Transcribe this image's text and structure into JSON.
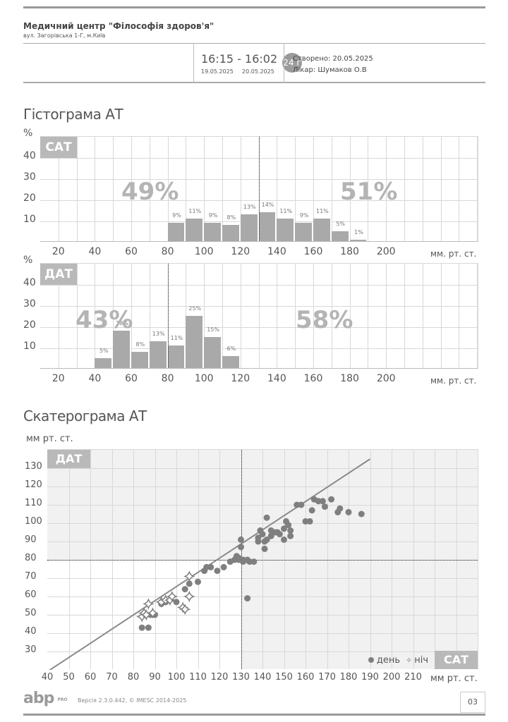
{
  "header": {
    "clinic_name": "Медичний центр \"Філософія здоров'я\"",
    "address": "вул. Загорівська 1-Г, м.Київ",
    "time_range": "16:15 - 16:02",
    "date_start": "19.05.2025",
    "date_end": "20.05.2025",
    "duration_badge": "24 г",
    "created": "Створено: 20.05.2025",
    "doctor": "Лікар: Шумаков О.В"
  },
  "sections": {
    "histogram_title": "Гістограма АТ",
    "scatter_title": "Скатерограма АТ"
  },
  "footer": {
    "logo_text": "abp",
    "logo_sub": "PRO",
    "version": "Версія 2.3.0.442, © IMESC 2014-2025",
    "page_number": "03"
  },
  "colors": {
    "bar": "#a9a9a9",
    "tag": "#b9b9b9",
    "big_percent": "#b4b4b4",
    "point": "#7f7f7f",
    "shade": "#f1f1f1",
    "grid": "#d8d8d8"
  },
  "chart_data": [
    {
      "type": "bar",
      "title": "САТ",
      "ylabel": "%",
      "xlabel": "мм. рт. ст.",
      "ylim": [
        0,
        50
      ],
      "yticks": [
        10,
        20,
        30,
        40
      ],
      "xticks": [
        20,
        40,
        60,
        80,
        100,
        120,
        140,
        160,
        180,
        200
      ],
      "bins": [
        [
          80,
          90
        ],
        [
          90,
          100
        ],
        [
          100,
          110
        ],
        [
          110,
          120
        ],
        [
          120,
          130
        ],
        [
          130,
          140
        ],
        [
          140,
          150
        ],
        [
          150,
          160
        ],
        [
          160,
          170
        ],
        [
          170,
          180
        ],
        [
          180,
          190
        ]
      ],
      "values": [
        9,
        11,
        9,
        8,
        13,
        14,
        11,
        9,
        11,
        5,
        1
      ],
      "labels": [
        "9%",
        "11%",
        "9%",
        "8%",
        "13%",
        "14%",
        "11%",
        "9%",
        "11%",
        "5%",
        "1%"
      ],
      "threshold": 130,
      "below_threshold_pct": "49%",
      "above_threshold_pct": "51%",
      "unit": "мм. рт. ст.",
      "grid": true
    },
    {
      "type": "bar",
      "title": "ДАТ",
      "ylabel": "%",
      "xlabel": "мм. рт. ст.",
      "ylim": [
        0,
        50
      ],
      "yticks": [
        10,
        20,
        30,
        40
      ],
      "xticks": [
        20,
        40,
        60,
        80,
        100,
        120,
        140,
        160,
        180,
        200
      ],
      "bins": [
        [
          40,
          50
        ],
        [
          50,
          60
        ],
        [
          60,
          70
        ],
        [
          70,
          80
        ],
        [
          80,
          90
        ],
        [
          90,
          100
        ],
        [
          100,
          110
        ],
        [
          110,
          120
        ]
      ],
      "values": [
        5,
        18,
        8,
        13,
        11,
        25,
        15,
        6
      ],
      "labels": [
        "5%",
        "18%",
        "8%",
        "13%",
        "11%",
        "25%",
        "15%",
        "6%"
      ],
      "threshold": 80,
      "below_threshold_pct": "43%",
      "above_threshold_pct": "58%",
      "unit": "мм. рт. ст.",
      "grid": true
    },
    {
      "type": "scatter",
      "title": "Скатерограма АТ",
      "xlabel": "мм рт. ст.",
      "ylabel": "мм рт. ст.",
      "x_axis_tag": "САТ",
      "y_axis_tag": "ДАТ",
      "xlim": [
        40,
        220
      ],
      "ylim": [
        20,
        140
      ],
      "xticks": [
        40,
        50,
        60,
        70,
        80,
        90,
        100,
        110,
        120,
        130,
        140,
        150,
        160,
        170,
        180,
        190,
        200,
        210
      ],
      "yticks": [
        30,
        40,
        50,
        60,
        70,
        80,
        90,
        100,
        110,
        120,
        130
      ],
      "thresholds": {
        "x": 130,
        "y": 80
      },
      "legend": [
        {
          "label": "день",
          "marker": "circle"
        },
        {
          "label": "ніч",
          "marker": "star"
        }
      ],
      "trend_line": {
        "from": [
          40,
          19
        ],
        "to": [
          190,
          135
        ]
      },
      "series": [
        {
          "name": "день",
          "points": [
            [
              84,
              43
            ],
            [
              87,
              43
            ],
            [
              88,
              50
            ],
            [
              90,
              50
            ],
            [
              93,
              56
            ],
            [
              95,
              57
            ],
            [
              100,
              57
            ],
            [
              104,
              64
            ],
            [
              106,
              67
            ],
            [
              110,
              68
            ],
            [
              113,
              74
            ],
            [
              114,
              76
            ],
            [
              116,
              76
            ],
            [
              119,
              74
            ],
            [
              122,
              76
            ],
            [
              125,
              79
            ],
            [
              127,
              80
            ],
            [
              128,
              82
            ],
            [
              129,
              81
            ],
            [
              130,
              91
            ],
            [
              130,
              87
            ],
            [
              131,
              80
            ],
            [
              133,
              80
            ],
            [
              133,
              59
            ],
            [
              134,
              79
            ],
            [
              136,
              79
            ],
            [
              138,
              90
            ],
            [
              138,
              92
            ],
            [
              139,
              96
            ],
            [
              140,
              94
            ],
            [
              141,
              90
            ],
            [
              141,
              86
            ],
            [
              142,
              91
            ],
            [
              142,
              103
            ],
            [
              144,
              96
            ],
            [
              147,
              95
            ],
            [
              148,
              94
            ],
            [
              150,
              91
            ],
            [
              151,
              101
            ],
            [
              152,
              99
            ],
            [
              153,
              96
            ],
            [
              153,
              93
            ],
            [
              156,
              110
            ],
            [
              158,
              110
            ],
            [
              160,
              101
            ],
            [
              162,
              101
            ],
            [
              163,
              107
            ],
            [
              164,
              113
            ],
            [
              166,
              112
            ],
            [
              168,
              112
            ],
            [
              169,
              109
            ],
            [
              172,
              113
            ],
            [
              175,
              106
            ],
            [
              176,
              108
            ],
            [
              180,
              106
            ],
            [
              186,
              105
            ],
            [
              150,
              97
            ],
            [
              146,
              95
            ],
            [
              144,
              93
            ],
            [
              131,
              79
            ],
            [
              129,
              80
            ]
          ]
        },
        {
          "name": "ніч",
          "points": [
            [
              84,
              49
            ],
            [
              85,
              51
            ],
            [
              86,
              50
            ],
            [
              87,
              56
            ],
            [
              89,
              51
            ],
            [
              93,
              57
            ],
            [
              95,
              58
            ],
            [
              97,
              58
            ],
            [
              98,
              60
            ],
            [
              103,
              54
            ],
            [
              104,
              53
            ],
            [
              106,
              60
            ],
            [
              106,
              71
            ]
          ]
        }
      ]
    }
  ]
}
